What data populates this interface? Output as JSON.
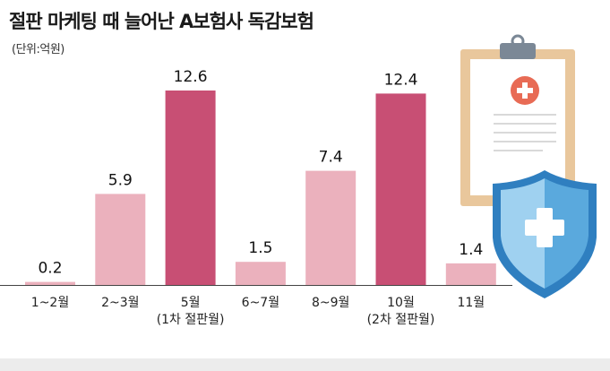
{
  "title": "절판 마케팅 때 늘어난 A보험사 독감보험",
  "unit_label": "(단위:억원)",
  "colors": {
    "bar_normal": "#ebb1bd",
    "bar_highlight": "#c84f74",
    "clipboard_frame": "#e9c79c",
    "clipboard_clip": "#7b8896",
    "medical_red": "#e86b55",
    "shield_light": "#9fd1f0",
    "shield_dark": "#5aa9dd",
    "shield_rim": "#2f7fc0",
    "background_strip": "#ececec"
  },
  "icons": [
    "clipboard-icon",
    "medical-cross-icon",
    "shield-cross-icon"
  ],
  "chart_data": {
    "type": "bar",
    "title": "절판 마케팅 때 늘어난 A보험사 독감보험",
    "unit": "(단위:억원)",
    "categories": [
      "1~2월",
      "2~3월",
      "5월",
      "6~7월",
      "8~9월",
      "10월",
      "11월"
    ],
    "sub_labels": [
      "",
      "",
      "(1차 절판월)",
      "",
      "",
      "(2차 절판월)",
      ""
    ],
    "values": [
      0.2,
      5.9,
      12.6,
      1.5,
      7.4,
      12.4,
      1.4
    ],
    "value_labels": [
      "0.2",
      "5.9",
      "12.6",
      "1.5",
      "7.4",
      "12.4",
      "1.4"
    ],
    "highlight": [
      false,
      false,
      true,
      false,
      false,
      true,
      false
    ],
    "ylim": [
      0,
      12.6
    ],
    "grid": false,
    "legend": "none",
    "xlabel": "",
    "ylabel": ""
  }
}
